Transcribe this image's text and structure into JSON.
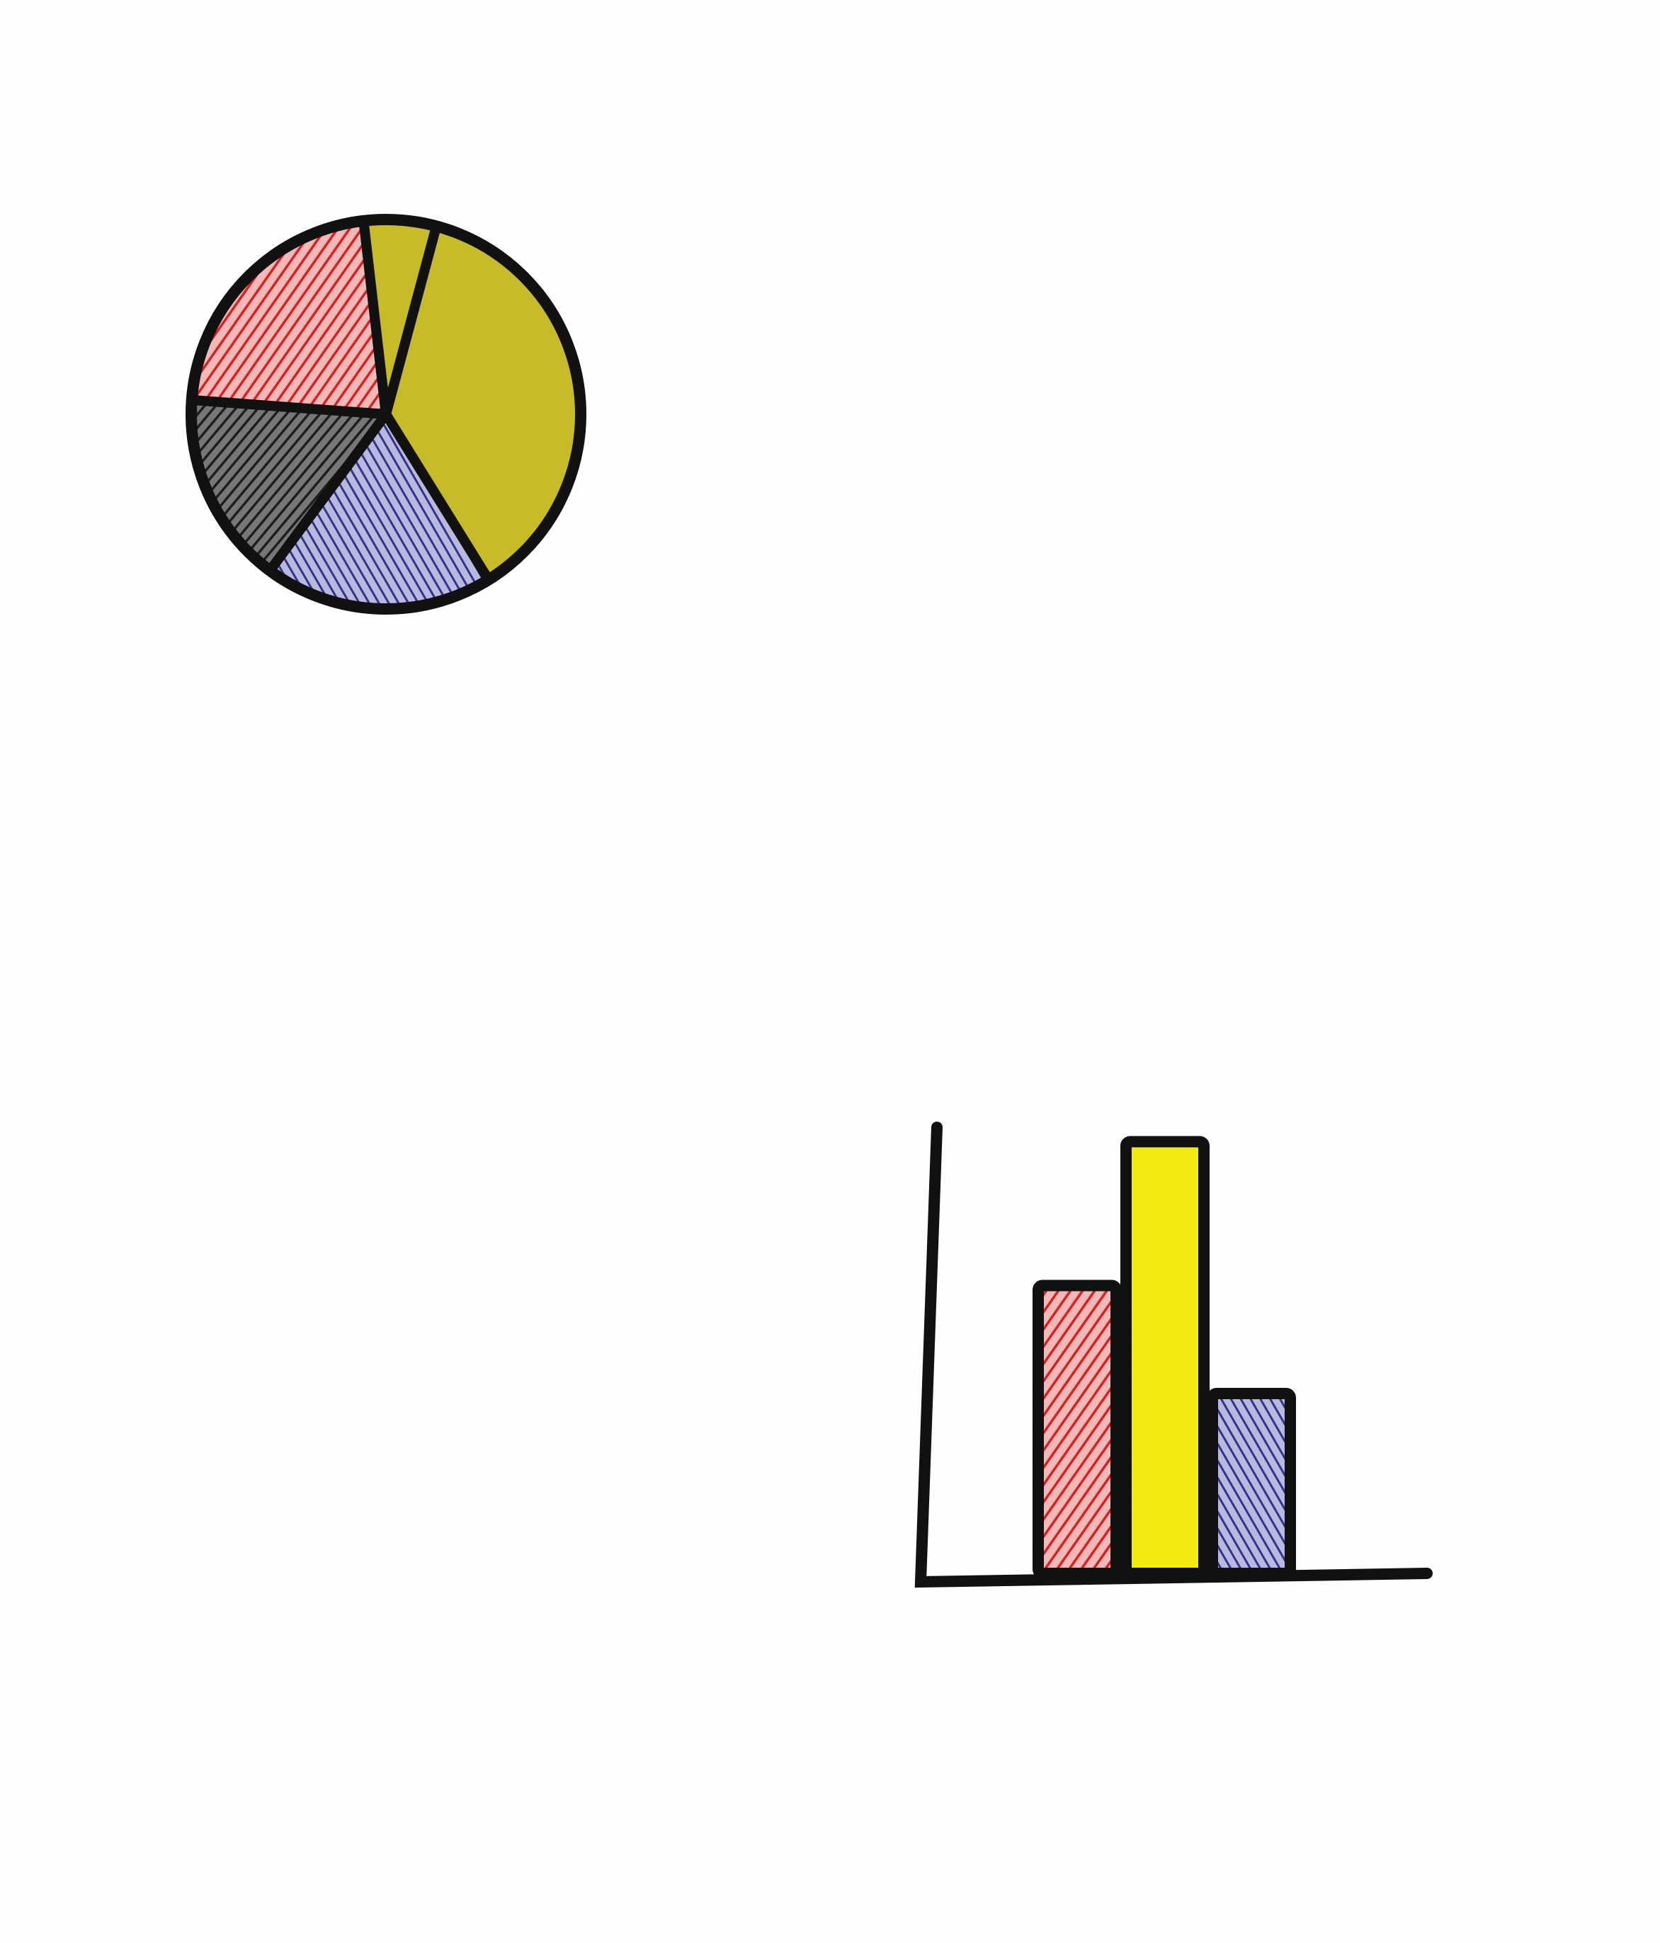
{
  "chart_data": [
    {
      "type": "pie",
      "slices": [
        {
          "value": 0.37,
          "color": "#c8bb2a",
          "fill_style": "marker"
        },
        {
          "value": 0.19,
          "color": "#3f3f9a",
          "fill_style": "hatched"
        },
        {
          "value": 0.16,
          "color": "#2a2a2a",
          "fill_style": "hatched"
        },
        {
          "value": 0.22,
          "color": "#dd2a2a",
          "fill_style": "hatched"
        },
        {
          "value": 0.06,
          "color": "#c8bb2a",
          "fill_style": "marker"
        }
      ],
      "start_angle_deg": -75
    },
    {
      "type": "bar",
      "values": [
        40,
        60,
        25
      ],
      "colors": [
        "#dd2a2a",
        "#f2ec12",
        "#3a3a9a"
      ],
      "fill_styles": [
        "hatched",
        "marker",
        "hatched"
      ],
      "ylim": [
        0,
        62
      ],
      "grid": false
    }
  ]
}
